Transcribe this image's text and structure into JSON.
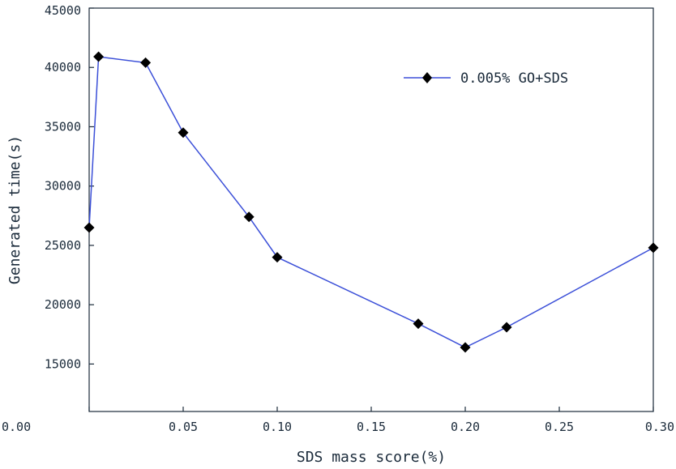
{
  "chart_data": {
    "type": "line",
    "xlabel": "SDS mass score(%)",
    "ylabel": "Generated time(s)",
    "xlim": [
      0.0,
      0.3
    ],
    "ylim": [
      11000,
      45000
    ],
    "xticks": [
      0.0,
      0.05,
      0.1,
      0.15,
      0.2,
      0.25,
      0.3
    ],
    "xtick_labels": [
      "0.00",
      "0.05",
      "0.10",
      "0.15",
      "0.20",
      "0.25",
      "0.30"
    ],
    "yticks": [
      15000,
      20000,
      25000,
      30000,
      35000,
      40000,
      45000
    ],
    "ytick_labels": [
      "15000",
      "20000",
      "25000",
      "30000",
      "35000",
      "40000",
      "45000"
    ],
    "grid": false,
    "legend_position": "top-right",
    "series": [
      {
        "name": "0.005% GO+SDS",
        "color": "#3b4fd8",
        "marker": "diamond",
        "x": [
          0.0,
          0.005,
          0.03,
          0.05,
          0.085,
          0.1,
          0.175,
          0.2,
          0.222,
          0.3
        ],
        "y": [
          26500,
          40900,
          40400,
          34500,
          27400,
          24000,
          18400,
          16400,
          18100,
          24800
        ]
      }
    ]
  }
}
